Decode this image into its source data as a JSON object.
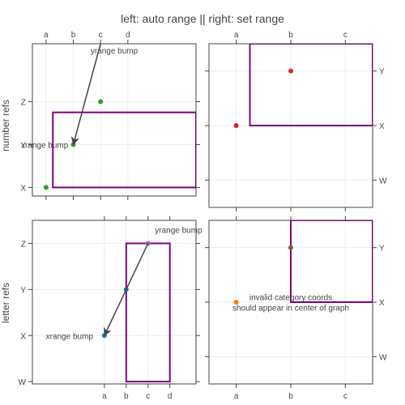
{
  "title": "left: auto range || right: set range",
  "row_titles": [
    "number refs",
    "letter refs"
  ],
  "colors": {
    "shape": "#800080",
    "arrow": "#444444",
    "green": "#2ca02c",
    "red": "#d62728",
    "blue": "#1f77b4",
    "orange": "#ff7f0e",
    "purple": "#9467bd",
    "brown": "#8c564b"
  },
  "chart_data": [
    {
      "type": "scatter",
      "position": "top-left",
      "x_categories": [
        "a",
        "b",
        "c",
        "d"
      ],
      "y_categories": [
        "X",
        "Y",
        "Z"
      ],
      "x_range": [
        -0.5,
        5.5
      ],
      "y_range": [
        -0.2,
        3.35
      ],
      "x_ticks": [
        0,
        1,
        2,
        3
      ],
      "y_ticks": [
        0,
        1,
        2
      ],
      "x_axis_side": "top",
      "y_axis_side": "left",
      "points": [
        {
          "x": 0,
          "y": 0,
          "color": "green"
        },
        {
          "x": 1,
          "y": 1,
          "color": "green"
        },
        {
          "x": 2,
          "y": 2,
          "color": "green"
        }
      ],
      "shape": {
        "x0": 0.25,
        "x1": 5.5,
        "y0": 0,
        "y1": 1.75
      },
      "annotations": [
        {
          "text": "yrange bump",
          "x": 2.5,
          "y": 3.2,
          "arrow": false
        },
        {
          "text": "xrange bump",
          "x": -0.05,
          "y": 1,
          "arrow": false
        },
        {
          "x": 1,
          "y": 1,
          "arrow": true,
          "ax": 2,
          "ay": 3.35
        }
      ]
    },
    {
      "type": "scatter",
      "position": "top-right",
      "x_categories": [
        "a",
        "b",
        "c"
      ],
      "y_categories": [
        "W",
        "X",
        "Y"
      ],
      "x_range": [
        -0.5,
        2.5
      ],
      "y_range": [
        -0.5,
        2.5
      ],
      "x_ticks": [
        0,
        1,
        2
      ],
      "y_ticks": [
        0,
        1,
        2
      ],
      "x_axis_side": "top",
      "y_axis_side": "right",
      "points": [
        {
          "x": 0,
          "y": 1,
          "color": "red"
        },
        {
          "x": 1,
          "y": 2,
          "color": "red"
        }
      ],
      "shape": {
        "x0": 0.25,
        "x1": 2.5,
        "y0": 1,
        "y1": 2.5
      },
      "annotations": []
    },
    {
      "type": "scatter",
      "position": "bottom-left",
      "x_categories": [
        "a",
        "b",
        "c",
        "d"
      ],
      "y_categories": [
        "W",
        "X",
        "Y",
        "Z"
      ],
      "x_range": [
        -3.3,
        4.2
      ],
      "y_range": [
        -0.05,
        3.5
      ],
      "x_ticks": [
        0,
        1,
        2,
        3
      ],
      "y_ticks": [
        0,
        1,
        2,
        3
      ],
      "x_axis_side": "bottom",
      "y_axis_side": "left",
      "points": [
        {
          "x": 0,
          "y": 1,
          "color": "blue"
        },
        {
          "x": 1,
          "y": 2,
          "color": "blue"
        },
        {
          "x": 2,
          "y": 3,
          "color": "purple"
        }
      ],
      "shape": {
        "x0": 1,
        "x1": 3,
        "y0": 0,
        "y1": 3
      },
      "annotations": [
        {
          "text": "yrange bump",
          "x": 3.4,
          "y": 3.3,
          "arrow": false
        },
        {
          "text": "xrange bump",
          "x": -1.6,
          "y": 1,
          "arrow": false
        },
        {
          "x": 0,
          "y": 1,
          "arrow": true,
          "ax": 2,
          "ay": 3
        }
      ]
    },
    {
      "type": "scatter",
      "position": "bottom-right",
      "x_categories": [
        "a",
        "b",
        "c"
      ],
      "y_categories": [
        "W",
        "X",
        "Y"
      ],
      "x_range": [
        -0.5,
        2.5
      ],
      "y_range": [
        -0.5,
        2.5
      ],
      "x_ticks": [
        0,
        1,
        2
      ],
      "y_ticks": [
        0,
        1,
        2
      ],
      "x_axis_side": "bottom",
      "y_axis_side": "right",
      "points": [
        {
          "x": 0,
          "y": 1,
          "color": "orange"
        },
        {
          "x": 1,
          "y": 2,
          "color": "brown"
        }
      ],
      "shape": {
        "x0": 1,
        "x1": 2.5,
        "y0": 1,
        "y1": 2.5
      },
      "annotations": [
        {
          "text": "invalid category coords",
          "x": 1,
          "y": 1.1,
          "arrow": false
        },
        {
          "text": "should appear in center of graph",
          "x": 1,
          "y": 0.9,
          "arrow": false
        }
      ]
    }
  ]
}
